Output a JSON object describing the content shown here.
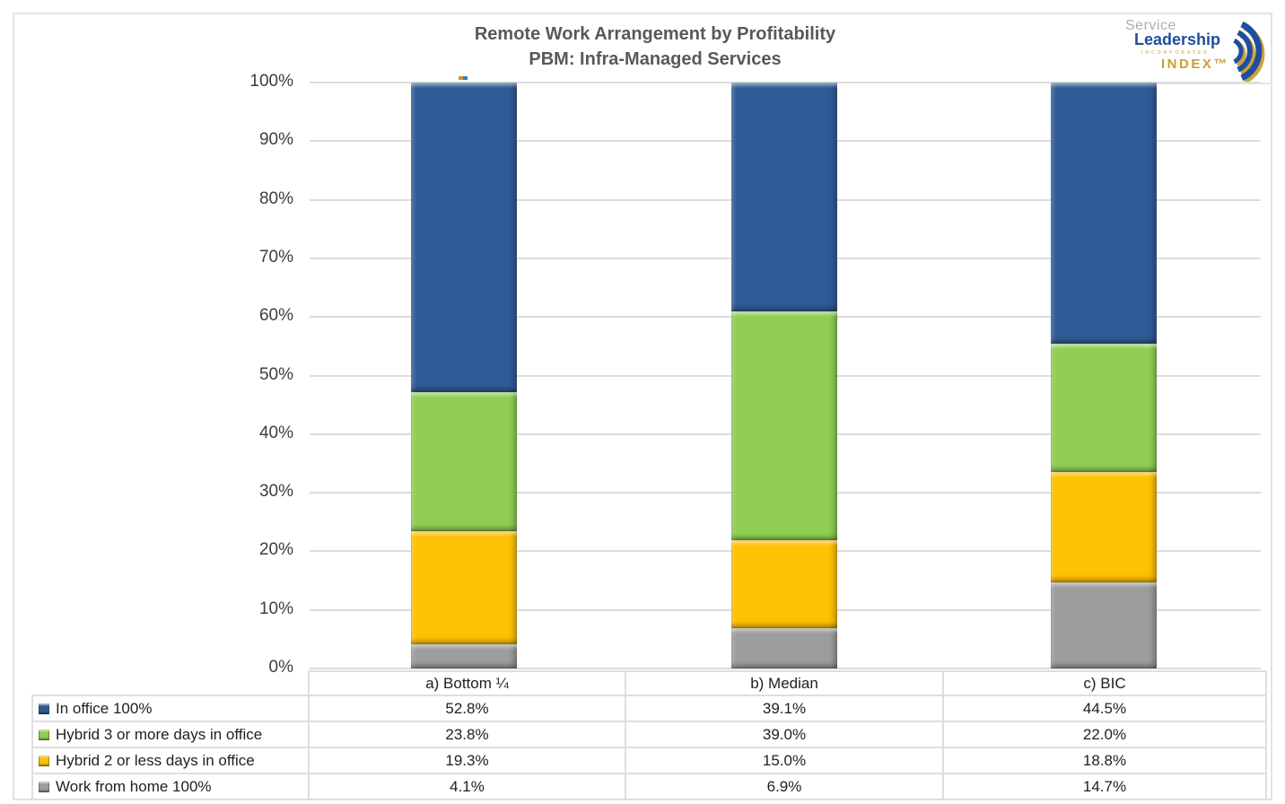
{
  "title": {
    "line1": "Remote Work Arrangement by Profitability",
    "line2": "PBM: Infra-Managed Services"
  },
  "logo": {
    "service": "Service",
    "leadership": "Leadership",
    "incorporated": "INCORPORATED",
    "index": "INDEX™",
    "blue": "#1f4e9c",
    "gold": "#c9a032"
  },
  "y_axis": {
    "ticks": [
      "100%",
      "90%",
      "80%",
      "70%",
      "60%",
      "50%",
      "40%",
      "30%",
      "20%",
      "10%",
      "0%"
    ]
  },
  "chart_data": {
    "type": "bar",
    "stacked": true,
    "title": "Remote Work Arrangement by Profitability — PBM: Infra-Managed Services",
    "categories": [
      "a) Bottom ¼",
      "b) Median",
      "c) BIC"
    ],
    "series": [
      {
        "name": "In office 100%",
        "color": "#2f5b96",
        "values": [
          52.8,
          39.1,
          44.5
        ]
      },
      {
        "name": "Hybrid 3 or more days in office",
        "color": "#8fce53",
        "values": [
          23.8,
          39.0,
          22.0
        ]
      },
      {
        "name": "Hybrid 2 or less days in office",
        "color": "#ffc103",
        "values": [
          19.3,
          15.0,
          18.8
        ]
      },
      {
        "name": "Work from home 100%",
        "color": "#9c9c9c",
        "values": [
          4.1,
          6.9,
          14.7
        ]
      }
    ],
    "xlabel": "",
    "ylabel": "",
    "ylim": [
      0,
      100
    ],
    "y_tick_step": 10,
    "grid": true,
    "legend_position": "table-bottom-left"
  },
  "table": {
    "col_headers": [
      "a) Bottom ¼",
      "b) Median",
      "c) BIC"
    ],
    "rows": [
      {
        "label": "In office 100%",
        "values": [
          "52.8%",
          "39.1%",
          "44.5%"
        ]
      },
      {
        "label": "Hybrid 3 or more days in office",
        "values": [
          "23.8%",
          "39.0%",
          "22.0%"
        ]
      },
      {
        "label": "Hybrid 2 or less days in office",
        "values": [
          "19.3%",
          "15.0%",
          "18.8%"
        ]
      },
      {
        "label": "Work from home 100%",
        "values": [
          "4.1%",
          "6.9%",
          "14.7%"
        ]
      }
    ]
  }
}
